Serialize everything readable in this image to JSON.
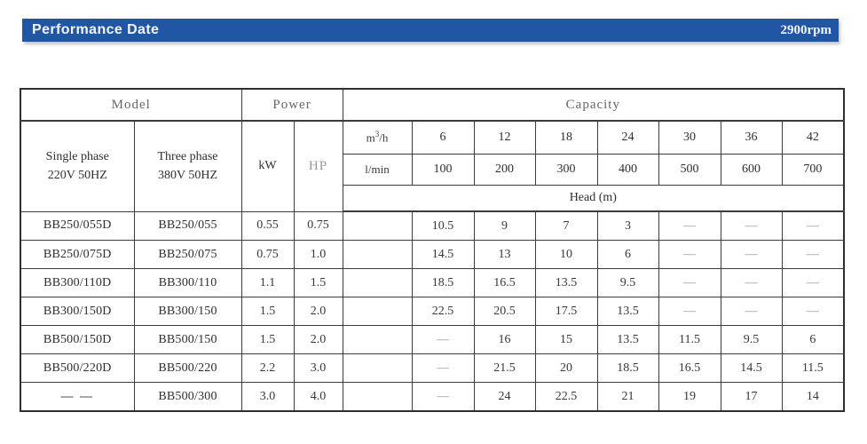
{
  "titlebar": {
    "title": "Performance Date",
    "rpm": "2900rpm",
    "bar_color": "#2156a5"
  },
  "table": {
    "header": {
      "model_group": "Model",
      "power_group": "Power",
      "capacity_group": "Capacity",
      "single_phase_line1": "Single phase",
      "single_phase_line2": "220V  50HZ",
      "three_phase_line1": "Three phase",
      "three_phase_line2": "380V  50HZ",
      "kw": "kW",
      "hp": "HP",
      "flow_unit_m3h": "m³/h",
      "flow_unit_lmin": "l/min",
      "head_label": "Head (m)",
      "m3h_values": [
        "6",
        "12",
        "18",
        "24",
        "30",
        "36",
        "42"
      ],
      "lmin_values": [
        "100",
        "200",
        "300",
        "400",
        "500",
        "600",
        "700"
      ]
    },
    "rows": [
      {
        "single": "BB250/055D",
        "three": "BB250/055",
        "kw": "0.55",
        "hp": "0.75",
        "heads": [
          "10.5",
          "9",
          "7",
          "3",
          "—",
          "—",
          "—"
        ]
      },
      {
        "single": "BB250/075D",
        "three": "BB250/075",
        "kw": "0.75",
        "hp": "1.0",
        "heads": [
          "14.5",
          "13",
          "10",
          "6",
          "—",
          "—",
          "—"
        ]
      },
      {
        "single": "BB300/110D",
        "three": "BB300/110",
        "kw": "1.1",
        "hp": "1.5",
        "heads": [
          "18.5",
          "16.5",
          "13.5",
          "9.5",
          "—",
          "—",
          "—"
        ]
      },
      {
        "single": "BB300/150D",
        "three": "BB300/150",
        "kw": "1.5",
        "hp": "2.0",
        "heads": [
          "22.5",
          "20.5",
          "17.5",
          "13.5",
          "—",
          "—",
          "—"
        ]
      },
      {
        "single": "BB500/150D",
        "three": "BB500/150",
        "kw": "1.5",
        "hp": "2.0",
        "heads": [
          "—",
          "16",
          "15",
          "13.5",
          "11.5",
          "9.5",
          "6"
        ]
      },
      {
        "single": "BB500/220D",
        "three": "BB500/220",
        "kw": "2.2",
        "hp": "3.0",
        "heads": [
          "—",
          "21.5",
          "20",
          "18.5",
          "16.5",
          "14.5",
          "11.5"
        ]
      },
      {
        "single": "— —",
        "three": "BB500/300",
        "kw": "3.0",
        "hp": "4.0",
        "heads": [
          "—",
          "24",
          "22.5",
          "21",
          "19",
          "17",
          "14"
        ]
      }
    ]
  }
}
